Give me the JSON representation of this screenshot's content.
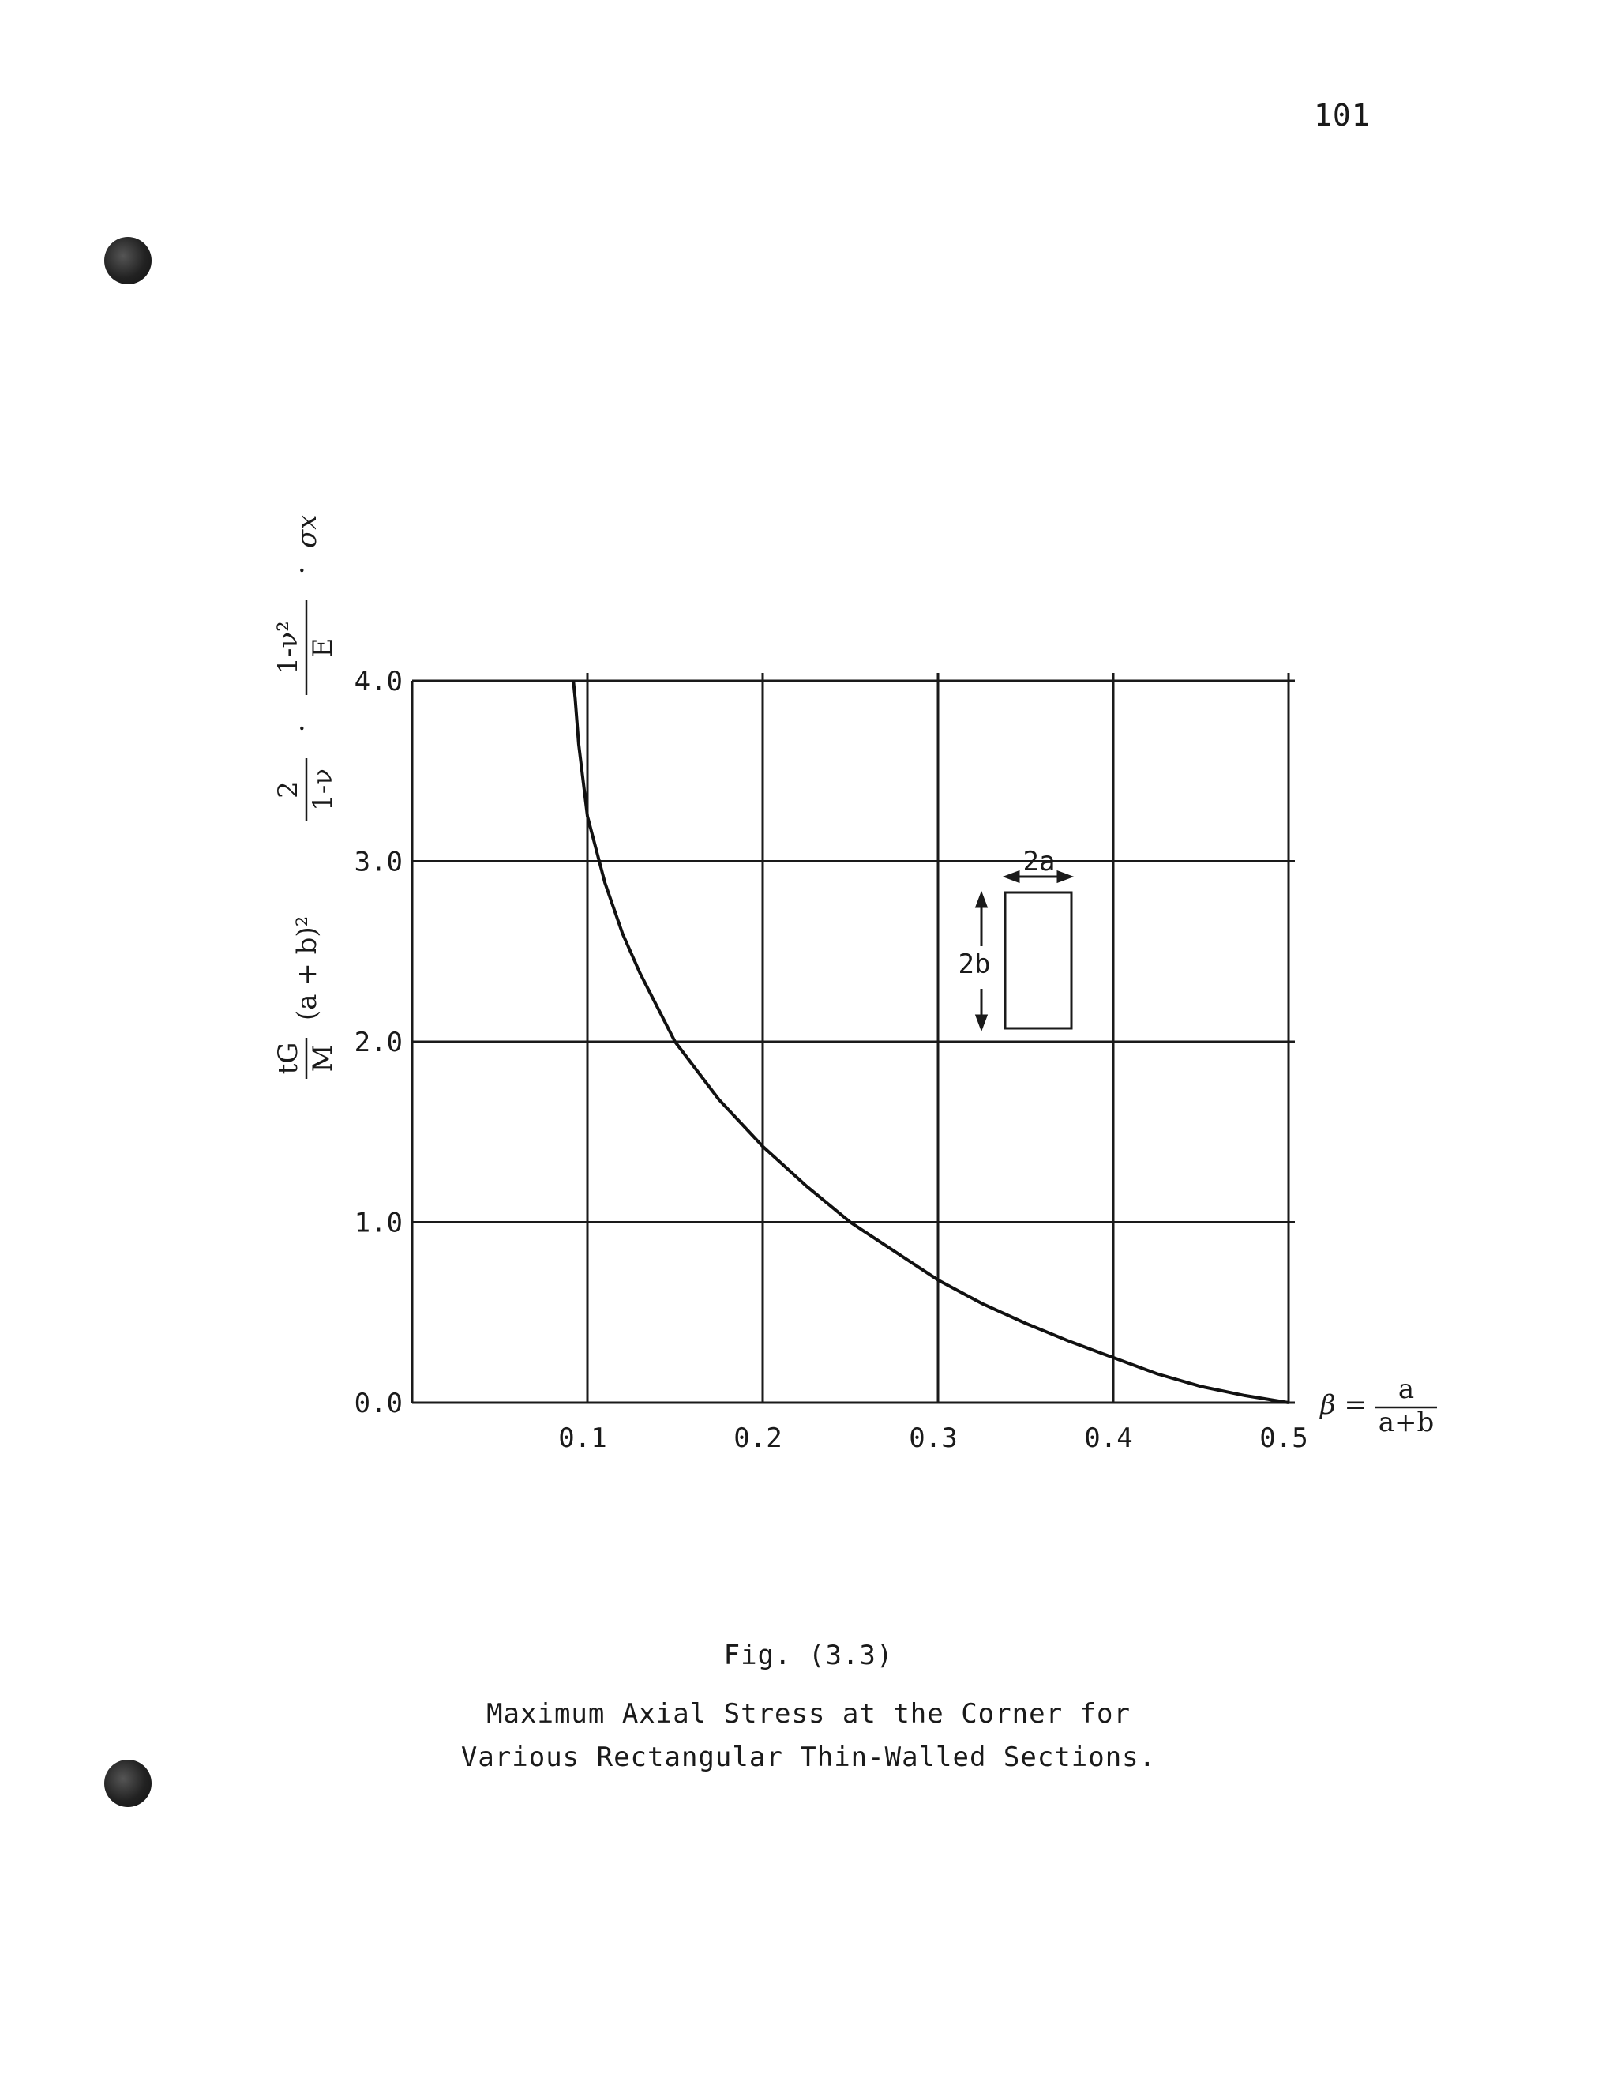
{
  "page_number": "101",
  "caption": {
    "fig_label": "Fig. (3.3)",
    "line1": "Maximum Axial Stress at the Corner for",
    "line2": "Various Rectangular Thin-Walled Sections."
  },
  "chart_data": {
    "type": "line",
    "title": "Maximum Axial Stress at the Corner for Various Rectangular Thin-Walled Sections.",
    "xlabel": "β = a/(a+b)",
    "xlabel_parts": {
      "beta": "β =",
      "num": "a",
      "den": "a+b"
    },
    "ylabel": "tG/M (a + b)² · 2/(1-ν) · (1-ν²)/E · σx",
    "ylabel_parts": {
      "f1_num": "tG",
      "f1_den": "M",
      "term": "(a + b)²",
      "f2_num": "2",
      "f2_den": "1-ν",
      "f3_num": "1-ν²",
      "f3_den": "E",
      "dot": "·",
      "sigma": "σx"
    },
    "xlim": [
      0,
      0.5
    ],
    "ylim": [
      0,
      4.0
    ],
    "x_ticks": [
      "0.1",
      "0.2",
      "0.3",
      "0.4",
      "0.5"
    ],
    "y_ticks": [
      "0.0",
      "1.0",
      "2.0",
      "3.0",
      "4.0"
    ],
    "grid": true,
    "series": [
      {
        "x": [
          0.092,
          0.093,
          0.095,
          0.1,
          0.11,
          0.12,
          0.13,
          0.15,
          0.175,
          0.2,
          0.225,
          0.25,
          0.275,
          0.3,
          0.325,
          0.35,
          0.375,
          0.4,
          0.425,
          0.45,
          0.475,
          0.5
        ],
        "y": [
          4.0,
          3.9,
          3.65,
          3.25,
          2.88,
          2.6,
          2.38,
          2.0,
          1.68,
          1.42,
          1.2,
          1.0,
          0.84,
          0.68,
          0.55,
          0.44,
          0.34,
          0.25,
          0.16,
          0.09,
          0.04,
          0.0
        ]
      }
    ],
    "inset": {
      "width_label": "2a",
      "height_label": "2b"
    }
  }
}
